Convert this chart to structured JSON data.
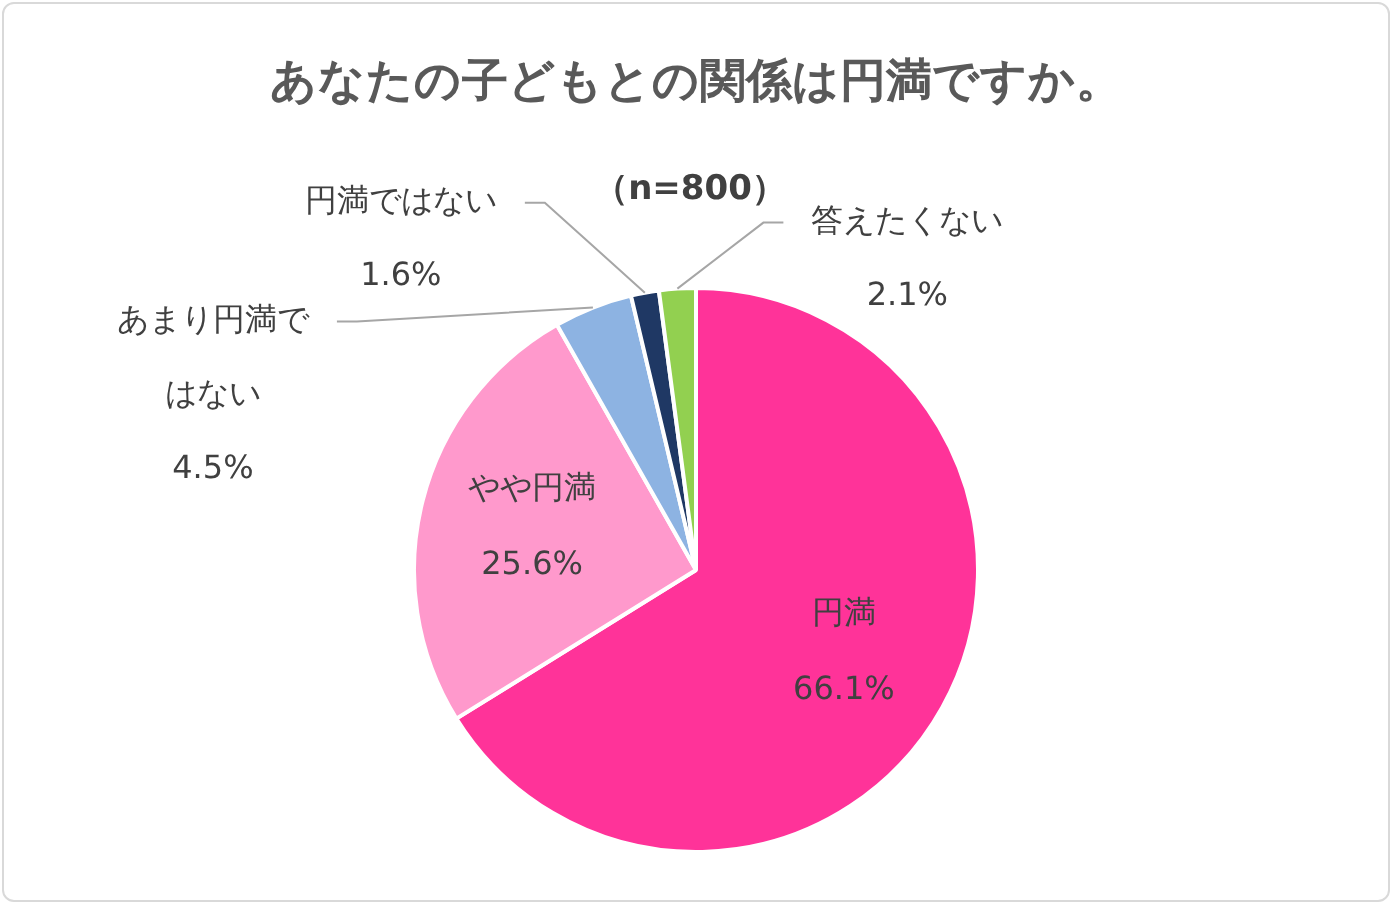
{
  "chart_data": {
    "type": "pie",
    "title": "あなたの子どもとの関係は円満ですか。",
    "subtitle": "（n=800）",
    "categories": [
      "円満",
      "やや円満",
      "あまり円満ではない",
      "円満ではない",
      "答えたくない"
    ],
    "values": [
      66.1,
      25.6,
      4.5,
      1.6,
      2.1
    ],
    "colors": [
      "#ff3399",
      "#ff99cc",
      "#8db3e2",
      "#1f3864",
      "#92d050"
    ],
    "value_labels": [
      "66.1%",
      "25.6%",
      "4.5%",
      "1.6%",
      "2.1%"
    ],
    "legend": false
  }
}
